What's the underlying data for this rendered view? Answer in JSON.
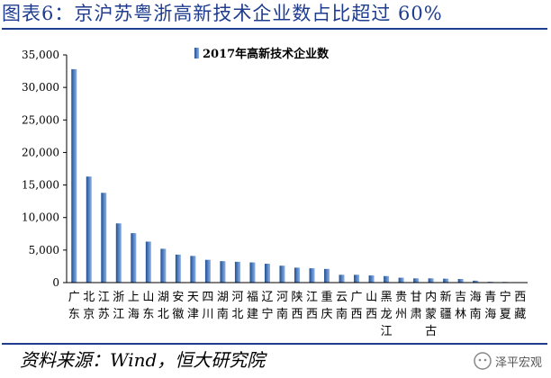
{
  "figure": {
    "title": "图表6：京沪苏粤浙高新技术企业数占比超过 60%",
    "source": "资料来源：Wind，恒大研究院",
    "watermark": "泽平宏观"
  },
  "colors": {
    "title": "#1f3c8f",
    "bar_left": "#1f4e8c",
    "bar_right": "#8fb0e0",
    "axis": "#000000"
  },
  "chart_data": {
    "type": "bar",
    "categories": [
      "广东",
      "北京",
      "江苏",
      "浙江",
      "上海",
      "山东",
      "湖北",
      "安徽",
      "天津",
      "四川",
      "湖南",
      "河北",
      "福建",
      "辽宁",
      "河南",
      "陕西",
      "江西",
      "重庆",
      "云南",
      "广西",
      "山西",
      "黑龙江",
      "贵州",
      "甘肃",
      "内蒙古",
      "新疆",
      "吉林",
      "海南",
      "青海",
      "宁夏",
      "西藏"
    ],
    "series": [
      {
        "name": "2017年高新技术企业数",
        "values": [
          32800,
          16300,
          13800,
          9100,
          7600,
          6300,
          5200,
          4300,
          4100,
          3500,
          3300,
          3200,
          3100,
          2900,
          2600,
          2300,
          2200,
          2100,
          1200,
          1200,
          1100,
          1000,
          750,
          650,
          650,
          600,
          550,
          300,
          120,
          100,
          60
        ]
      }
    ],
    "ylim": [
      0,
      35000
    ],
    "yticks": [
      0,
      5000,
      10000,
      15000,
      20000,
      25000,
      30000,
      35000
    ],
    "ytick_labels": [
      "0",
      "5,000",
      "10,000",
      "15,000",
      "20,000",
      "25,000",
      "30,000",
      "35,000"
    ],
    "legend_position": "top-center",
    "grid": false
  }
}
